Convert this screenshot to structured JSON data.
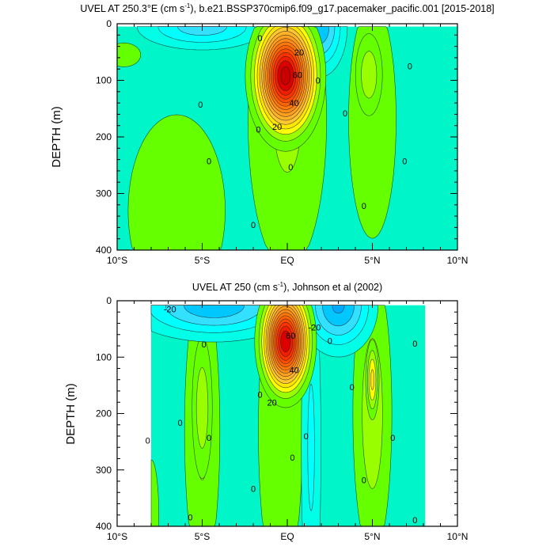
{
  "chart_data": [
    {
      "type": "heatmap",
      "title": "UVEL AT 250.3°E (cm s-1), b.e21.BSSP370cmip6.f09_g17.pacemaker_pacific.001 [2015-2018]",
      "title_parts": {
        "main": "UVEL AT 250.3°E (cm s",
        "exp": "-1",
        "rest": "), b.e21.BSSP370cmip6.f09_g17.pacemaker_pacific.001 [2015-2018]"
      },
      "xlabel": "",
      "ylabel": "DEPTH (m)",
      "xlim": [
        -10,
        10
      ],
      "ylim": [
        400,
        0
      ],
      "data_lat_range": [
        -10,
        10
      ],
      "data_depth_range": [
        5,
        400
      ],
      "xticks": [
        {
          "v": -10,
          "label": "10°S"
        },
        {
          "v": -5,
          "label": "5°S"
        },
        {
          "v": 0,
          "label": "EQ"
        },
        {
          "v": 5,
          "label": "5°N"
        },
        {
          "v": 10,
          "label": "10°N"
        }
      ],
      "yticks": [
        {
          "v": 0,
          "label": "0"
        },
        {
          "v": 100,
          "label": "100"
        },
        {
          "v": 200,
          "label": "200"
        },
        {
          "v": 300,
          "label": "300"
        },
        {
          "v": 400,
          "label": "400"
        }
      ],
      "contour_interval": 5,
      "background_value": -3,
      "features": [
        {
          "lat": -6.5,
          "depth": 330,
          "amp": 8,
          "sx": 3.2,
          "sy": 190
        },
        {
          "lat": -9.6,
          "depth": 55,
          "amp": 7,
          "sx": 1.3,
          "sy": 28
        },
        {
          "lat": 0.0,
          "depth": 170,
          "amp": 11,
          "sx": 2.0,
          "sy": 230
        },
        {
          "lat": 5.0,
          "depth": 170,
          "amp": 9,
          "sx": 1.4,
          "sy": 210
        },
        {
          "lat": 4.8,
          "depth": 90,
          "amp": 14,
          "sx": 0.6,
          "sy": 55
        },
        {
          "lat": -5.0,
          "depth": 5,
          "amp": -18,
          "sx": 2.6,
          "sy": 28
        },
        {
          "lat": 1.9,
          "depth": 5,
          "amp": -24,
          "sx": 1.0,
          "sy": 55
        },
        {
          "lat": -0.1,
          "depth": 92,
          "amp": 78,
          "sx": 1.1,
          "sy": 62
        }
      ],
      "labels": [
        {
          "text": "0",
          "lat": -1.6,
          "depth": 25
        },
        {
          "text": "20",
          "lat": 0.7,
          "depth": 50
        },
        {
          "text": "60",
          "lat": 0.6,
          "depth": 90
        },
        {
          "text": "40",
          "lat": 0.4,
          "depth": 140
        },
        {
          "text": "20",
          "lat": -0.6,
          "depth": 182
        },
        {
          "text": "0",
          "lat": 1.8,
          "depth": 100
        },
        {
          "text": "0",
          "lat": -5.1,
          "depth": 143
        },
        {
          "text": "0",
          "lat": -4.6,
          "depth": 243
        },
        {
          "text": "0",
          "lat": -1.7,
          "depth": 187
        },
        {
          "text": "0",
          "lat": 0.2,
          "depth": 253
        },
        {
          "text": "0",
          "lat": 3.4,
          "depth": 158
        },
        {
          "text": "0",
          "lat": 4.5,
          "depth": 322
        },
        {
          "text": "0",
          "lat": 7.2,
          "depth": 75
        },
        {
          "text": "0",
          "lat": 6.9,
          "depth": 243
        },
        {
          "text": "0",
          "lat": -2.0,
          "depth": 355
        }
      ]
    },
    {
      "type": "heatmap",
      "title": "UVEL AT 250 (cm s-1), Johnson et al (2002)",
      "title_parts": {
        "main": "UVEL AT 250 (cm s",
        "exp": "-1",
        "rest": "), Johnson et al (2002)"
      },
      "xlabel": "",
      "ylabel": "DEPTH (m)",
      "xlim": [
        -10,
        10
      ],
      "ylim": [
        400,
        0
      ],
      "data_lat_range": [
        -8,
        8.1
      ],
      "data_depth_range": [
        8,
        400
      ],
      "xticks": [
        {
          "v": -10,
          "label": "10°S"
        },
        {
          "v": -5,
          "label": "5°S"
        },
        {
          "v": 0,
          "label": "EQ"
        },
        {
          "v": 5,
          "label": "5°N"
        },
        {
          "v": 10,
          "label": "10°N"
        }
      ],
      "yticks": [
        {
          "v": 0,
          "label": "0"
        },
        {
          "v": 100,
          "label": "100"
        },
        {
          "v": 200,
          "label": "200"
        },
        {
          "v": 300,
          "label": "300"
        },
        {
          "v": 400,
          "label": "400"
        }
      ],
      "contour_interval": 5,
      "background_value": -3,
      "features": [
        {
          "lat": -8.0,
          "depth": 380,
          "amp": 8,
          "sx": 0.5,
          "sy": 110
        },
        {
          "lat": -0.4,
          "depth": 230,
          "amp": 10,
          "sx": 1.2,
          "sy": 260
        },
        {
          "lat": -5.0,
          "depth": 230,
          "amp": 11,
          "sx": 0.9,
          "sy": 220
        },
        {
          "lat": -5.0,
          "depth": 190,
          "amp": 14,
          "sx": 0.45,
          "sy": 95
        },
        {
          "lat": 5.0,
          "depth": 200,
          "amp": 13,
          "sx": 0.9,
          "sy": 200
        },
        {
          "lat": 5.0,
          "depth": 140,
          "amp": 22,
          "sx": 0.25,
          "sy": 45
        },
        {
          "lat": 1.4,
          "depth": 260,
          "amp": -11,
          "sx": 0.5,
          "sy": 280
        },
        {
          "lat": -4.3,
          "depth": 8,
          "amp": -24,
          "sx": 3.2,
          "sy": 40
        },
        {
          "lat": 3.0,
          "depth": 8,
          "amp": -26,
          "sx": 1.4,
          "sy": 55
        },
        {
          "lat": -0.1,
          "depth": 72,
          "amp": 75,
          "sx": 0.85,
          "sy": 55
        }
      ],
      "labels": [
        {
          "text": "-20",
          "lat": -6.9,
          "depth": 15
        },
        {
          "text": "60",
          "lat": 0.2,
          "depth": 62
        },
        {
          "text": "-20",
          "lat": 1.6,
          "depth": 47
        },
        {
          "text": "40",
          "lat": 0.4,
          "depth": 123
        },
        {
          "text": "20",
          "lat": -0.9,
          "depth": 180
        },
        {
          "text": "0",
          "lat": -4.9,
          "depth": 77
        },
        {
          "text": "0",
          "lat": -6.3,
          "depth": 216
        },
        {
          "text": "0",
          "lat": -8.2,
          "depth": 248
        },
        {
          "text": "0",
          "lat": -4.6,
          "depth": 243
        },
        {
          "text": "0",
          "lat": -1.6,
          "depth": 166
        },
        {
          "text": "0",
          "lat": 1.1,
          "depth": 240
        },
        {
          "text": "0",
          "lat": 0.3,
          "depth": 278
        },
        {
          "text": "0",
          "lat": 2.5,
          "depth": 71
        },
        {
          "text": "0",
          "lat": 3.8,
          "depth": 153
        },
        {
          "text": "0",
          "lat": 4.5,
          "depth": 318
        },
        {
          "text": "0",
          "lat": 6.2,
          "depth": 243
        },
        {
          "text": "0",
          "lat": 7.5,
          "depth": 76
        },
        {
          "text": "0",
          "lat": -2.0,
          "depth": 333
        },
        {
          "text": "0",
          "lat": -5.7,
          "depth": 384
        },
        {
          "text": "0",
          "lat": 7.5,
          "depth": 389
        }
      ]
    }
  ]
}
